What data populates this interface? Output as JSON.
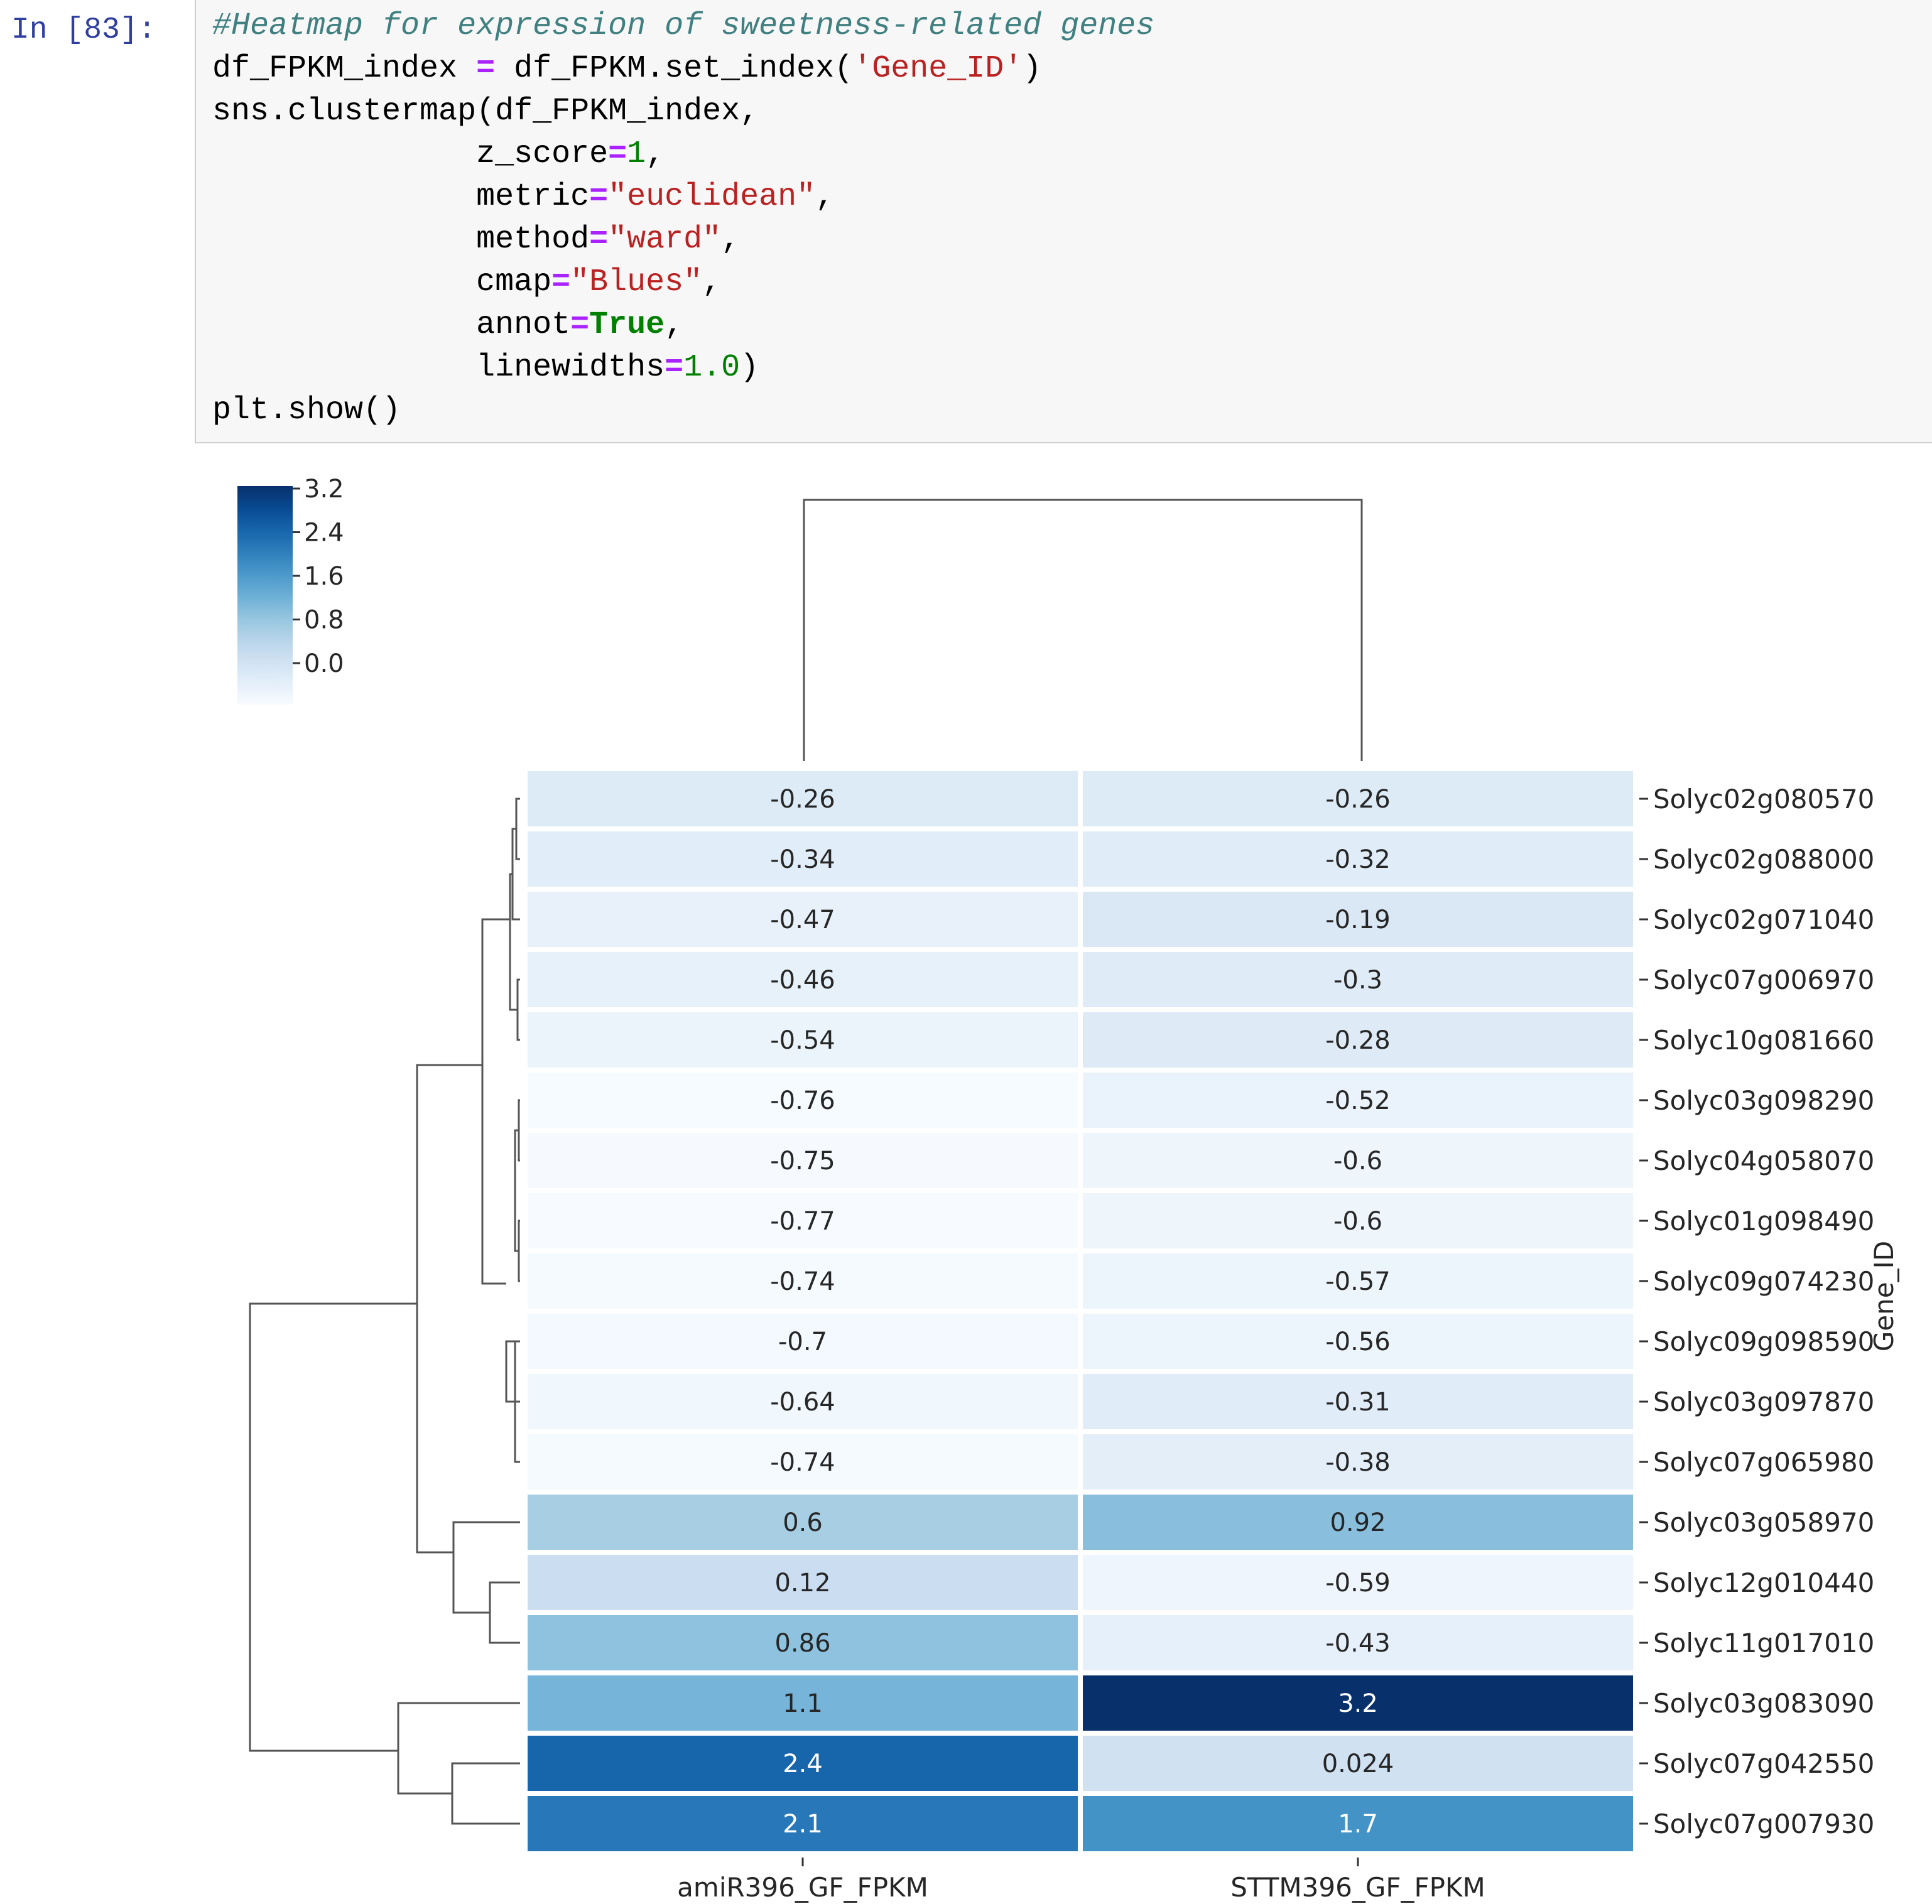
{
  "cell": {
    "prompt": "In [83]:",
    "code_lines": [
      [
        {
          "t": "#Heatmap for expression of sweetness-related genes",
          "c": "cm"
        }
      ],
      [
        {
          "t": "df_FPKM_index "
        },
        {
          "t": "=",
          "c": "op"
        },
        {
          "t": " df_FPKM.set_index("
        },
        {
          "t": "'Gene_ID'",
          "c": "st"
        },
        {
          "t": ")"
        }
      ],
      [
        {
          "t": "sns.clustermap(df_FPKM_index,"
        }
      ],
      [
        {
          "t": "              z_score"
        },
        {
          "t": "=",
          "c": "op"
        },
        {
          "t": "1",
          "c": "nm"
        },
        {
          "t": ","
        }
      ],
      [
        {
          "t": "              metric"
        },
        {
          "t": "=",
          "c": "op"
        },
        {
          "t": "\"euclidean\"",
          "c": "st"
        },
        {
          "t": ","
        }
      ],
      [
        {
          "t": "              method"
        },
        {
          "t": "=",
          "c": "op"
        },
        {
          "t": "\"ward\"",
          "c": "st"
        },
        {
          "t": ","
        }
      ],
      [
        {
          "t": "              cmap"
        },
        {
          "t": "=",
          "c": "op"
        },
        {
          "t": "\"Blues\"",
          "c": "st"
        },
        {
          "t": ","
        }
      ],
      [
        {
          "t": "              annot"
        },
        {
          "t": "=",
          "c": "op"
        },
        {
          "t": "True",
          "c": "kw"
        },
        {
          "t": ","
        }
      ],
      [
        {
          "t": "              linewidths"
        },
        {
          "t": "=",
          "c": "op"
        },
        {
          "t": "1.0",
          "c": "nm"
        },
        {
          "t": ")"
        }
      ],
      [
        {
          "t": "plt.show()"
        }
      ]
    ]
  },
  "colors": {
    "editor_bg": "#f7f7f7",
    "prompt": "#303f9f",
    "comment": "#408080",
    "operator": "#aa22ff",
    "string": "#ba2121",
    "number": "#008000",
    "dendrogram": "#555555"
  },
  "chart_data": {
    "type": "heatmap",
    "colormap": "Blues",
    "vmin": -0.77,
    "vmax": 3.2,
    "ylabel": "Gene_ID",
    "columns": [
      "amiR396_GF_FPKM",
      "STTM396_GF_FPKM"
    ],
    "rows": [
      "Solyc02g080570",
      "Solyc02g088000",
      "Solyc02g071040",
      "Solyc07g006970",
      "Solyc10g081660",
      "Solyc03g098290",
      "Solyc04g058070",
      "Solyc01g098490",
      "Solyc09g074230",
      "Solyc09g098590",
      "Solyc03g097870",
      "Solyc07g065980",
      "Solyc03g058970",
      "Solyc12g010440",
      "Solyc11g017010",
      "Solyc03g083090",
      "Solyc07g042550",
      "Solyc07g007930"
    ],
    "values": [
      [
        -0.26,
        -0.26
      ],
      [
        -0.34,
        -0.32
      ],
      [
        -0.47,
        -0.19
      ],
      [
        -0.46,
        -0.3
      ],
      [
        -0.54,
        -0.28
      ],
      [
        -0.76,
        -0.52
      ],
      [
        -0.75,
        -0.6
      ],
      [
        -0.77,
        -0.6
      ],
      [
        -0.74,
        -0.57
      ],
      [
        -0.7,
        -0.56
      ],
      [
        -0.64,
        -0.31
      ],
      [
        -0.74,
        -0.38
      ],
      [
        0.6,
        0.92
      ],
      [
        0.12,
        -0.59
      ],
      [
        0.86,
        -0.43
      ],
      [
        1.1,
        3.2
      ],
      [
        2.4,
        0.024
      ],
      [
        2.1,
        1.7
      ]
    ],
    "colorbar_ticks": [
      "3.2",
      "2.4",
      "1.6",
      "0.8",
      "0.0"
    ],
    "colorbar_tick_values": [
      3.2,
      2.4,
      1.6,
      0.8,
      0.0
    ]
  }
}
